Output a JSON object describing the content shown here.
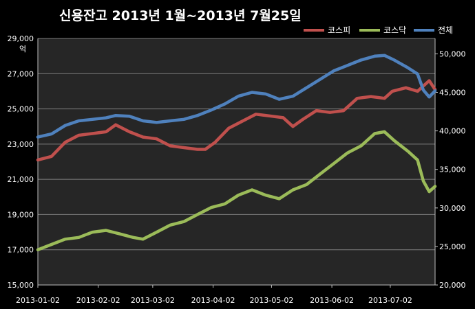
{
  "chart_data": {
    "type": "line",
    "title": "신용잔고 2013년 1월~2013년 7월25일",
    "y_left_unit": "억",
    "x_ticks": [
      "2013-01-02",
      "2013-02-02",
      "2013-03-02",
      "2013-04-02",
      "2013-05-02",
      "2013-06-02",
      "2013-07-02"
    ],
    "y_left": {
      "min": 15000,
      "max": 29000,
      "ticks": [
        "15,000",
        "17,000",
        "19,000",
        "21,000",
        "23,000",
        "25,000",
        "27,000",
        "29,000"
      ]
    },
    "y_right": {
      "min": 20000,
      "max": 52000,
      "ticks": [
        "20,000",
        "25,000",
        "30,000",
        "35,000",
        "40,000",
        "45,000",
        "50,000"
      ]
    },
    "x_range": [
      "2013-01-02",
      "2013-07-25"
    ],
    "grid": "horizontal",
    "legend_position": "top-right",
    "colors": {
      "kospi": "#c0504d",
      "kosdaq": "#9bbb59",
      "total": "#4f81bd",
      "plot_bg": "#262626",
      "page_bg": "#000000"
    },
    "series": [
      {
        "name": "코스피",
        "key": "kospi",
        "axis": "left",
        "points": [
          [
            "2013-01-02",
            22100
          ],
          [
            "2013-01-09",
            22300
          ],
          [
            "2013-01-16",
            23100
          ],
          [
            "2013-01-23",
            23500
          ],
          [
            "2013-01-30",
            23600
          ],
          [
            "2013-02-06",
            23700
          ],
          [
            "2013-02-11",
            24100
          ],
          [
            "2013-02-18",
            23700
          ],
          [
            "2013-02-25",
            23400
          ],
          [
            "2013-03-04",
            23300
          ],
          [
            "2013-03-11",
            22900
          ],
          [
            "2013-03-18",
            22800
          ],
          [
            "2013-03-25",
            22700
          ],
          [
            "2013-03-29",
            22700
          ],
          [
            "2013-04-03",
            23100
          ],
          [
            "2013-04-10",
            23900
          ],
          [
            "2013-04-17",
            24300
          ],
          [
            "2013-04-24",
            24700
          ],
          [
            "2013-05-01",
            24600
          ],
          [
            "2013-05-08",
            24500
          ],
          [
            "2013-05-13",
            24000
          ],
          [
            "2013-05-18",
            24400
          ],
          [
            "2013-05-25",
            24900
          ],
          [
            "2013-06-01",
            24800
          ],
          [
            "2013-06-08",
            24900
          ],
          [
            "2013-06-15",
            25600
          ],
          [
            "2013-06-22",
            25700
          ],
          [
            "2013-06-29",
            25600
          ],
          [
            "2013-07-03",
            26000
          ],
          [
            "2013-07-10",
            26200
          ],
          [
            "2013-07-16",
            26000
          ],
          [
            "2013-07-22",
            26600
          ],
          [
            "2013-07-25",
            26100
          ]
        ]
      },
      {
        "name": "코스닥",
        "key": "kosdaq",
        "axis": "left",
        "points": [
          [
            "2013-01-02",
            17000
          ],
          [
            "2013-01-09",
            17300
          ],
          [
            "2013-01-16",
            17600
          ],
          [
            "2013-01-23",
            17700
          ],
          [
            "2013-01-30",
            18000
          ],
          [
            "2013-02-06",
            18100
          ],
          [
            "2013-02-13",
            17900
          ],
          [
            "2013-02-20",
            17700
          ],
          [
            "2013-02-25",
            17600
          ],
          [
            "2013-03-04",
            18000
          ],
          [
            "2013-03-11",
            18400
          ],
          [
            "2013-03-18",
            18600
          ],
          [
            "2013-03-25",
            19000
          ],
          [
            "2013-04-01",
            19400
          ],
          [
            "2013-04-08",
            19600
          ],
          [
            "2013-04-15",
            20100
          ],
          [
            "2013-04-22",
            20400
          ],
          [
            "2013-04-29",
            20100
          ],
          [
            "2013-05-06",
            19900
          ],
          [
            "2013-05-13",
            20400
          ],
          [
            "2013-05-20",
            20700
          ],
          [
            "2013-05-27",
            21300
          ],
          [
            "2013-06-03",
            21900
          ],
          [
            "2013-06-10",
            22500
          ],
          [
            "2013-06-17",
            22900
          ],
          [
            "2013-06-24",
            23600
          ],
          [
            "2013-06-29",
            23700
          ],
          [
            "2013-07-04",
            23200
          ],
          [
            "2013-07-11",
            22600
          ],
          [
            "2013-07-16",
            22100
          ],
          [
            "2013-07-19",
            20900
          ],
          [
            "2013-07-22",
            20300
          ],
          [
            "2013-07-25",
            20600
          ]
        ]
      },
      {
        "name": "전체",
        "key": "total",
        "axis": "right",
        "points": [
          [
            "2013-01-02",
            39200
          ],
          [
            "2013-01-09",
            39600
          ],
          [
            "2013-01-16",
            40700
          ],
          [
            "2013-01-23",
            41300
          ],
          [
            "2013-01-30",
            41500
          ],
          [
            "2013-02-06",
            41700
          ],
          [
            "2013-02-11",
            42000
          ],
          [
            "2013-02-18",
            41900
          ],
          [
            "2013-02-25",
            41300
          ],
          [
            "2013-03-04",
            41100
          ],
          [
            "2013-03-11",
            41300
          ],
          [
            "2013-03-18",
            41500
          ],
          [
            "2013-03-25",
            42000
          ],
          [
            "2013-04-01",
            42700
          ],
          [
            "2013-04-08",
            43500
          ],
          [
            "2013-04-15",
            44500
          ],
          [
            "2013-04-22",
            45000
          ],
          [
            "2013-04-29",
            44800
          ],
          [
            "2013-05-06",
            44100
          ],
          [
            "2013-05-13",
            44500
          ],
          [
            "2013-05-20",
            45600
          ],
          [
            "2013-05-27",
            46700
          ],
          [
            "2013-06-03",
            47800
          ],
          [
            "2013-06-10",
            48500
          ],
          [
            "2013-06-17",
            49200
          ],
          [
            "2013-06-24",
            49700
          ],
          [
            "2013-06-29",
            49800
          ],
          [
            "2013-07-04",
            49200
          ],
          [
            "2013-07-11",
            48200
          ],
          [
            "2013-07-16",
            47400
          ],
          [
            "2013-07-19",
            45300
          ],
          [
            "2013-07-22",
            44400
          ],
          [
            "2013-07-25",
            45200
          ]
        ]
      }
    ]
  }
}
